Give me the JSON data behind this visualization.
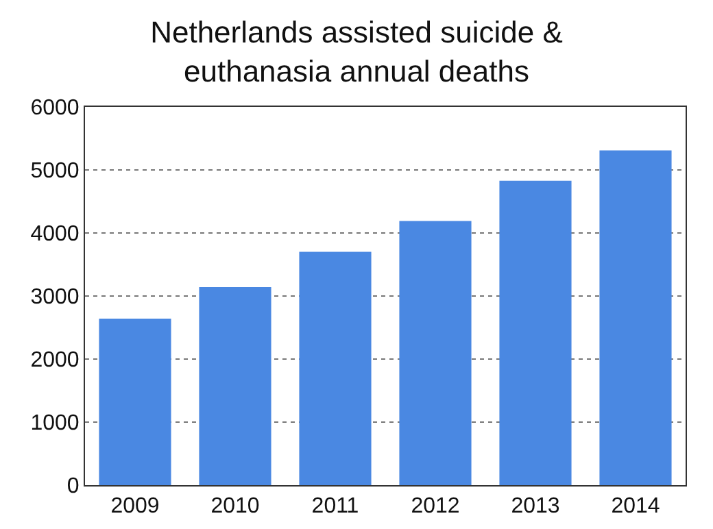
{
  "chart_data": {
    "type": "bar",
    "title": "Netherlands assisted suicide &\neuthanasia annual deaths",
    "categories": [
      "2009",
      "2010",
      "2011",
      "2012",
      "2013",
      "2014"
    ],
    "values": [
      2640,
      3140,
      3700,
      4190,
      4830,
      5310
    ],
    "color": "#4a88e2",
    "ylim": [
      0,
      6000
    ],
    "yticks": [
      0,
      1000,
      2000,
      3000,
      4000,
      5000,
      6000
    ],
    "grid": "y"
  }
}
